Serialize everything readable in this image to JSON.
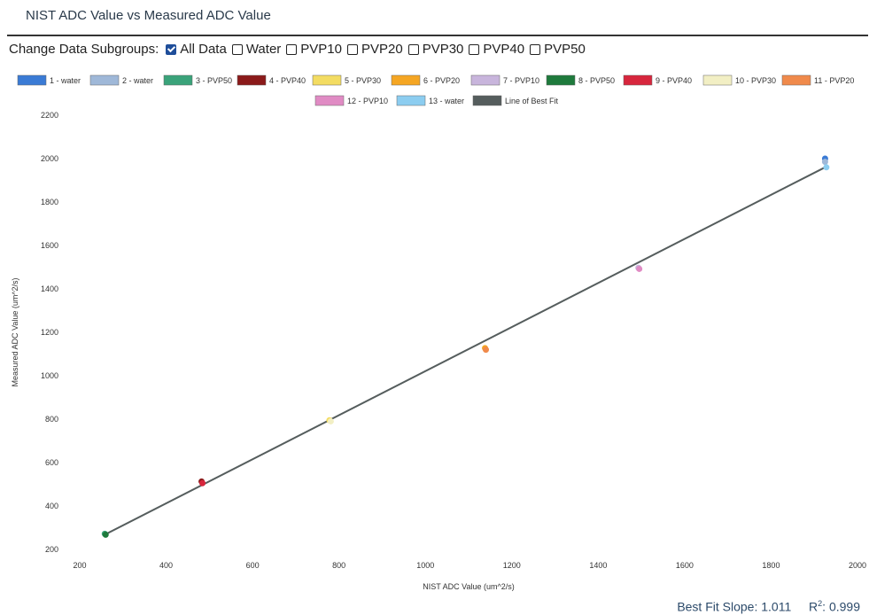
{
  "title": "NIST ADC Value vs Measured ADC Value",
  "subgroups": {
    "label": "Change Data Subgroups:",
    "options": [
      {
        "label": "All Data",
        "checked": true
      },
      {
        "label": "Water",
        "checked": false
      },
      {
        "label": "PVP10",
        "checked": false
      },
      {
        "label": "PVP20",
        "checked": false
      },
      {
        "label": "PVP30",
        "checked": false
      },
      {
        "label": "PVP40",
        "checked": false
      },
      {
        "label": "PVP50",
        "checked": false
      }
    ]
  },
  "footer": {
    "slope_label": "Best Fit Slope:",
    "slope_value": "1.011",
    "r2_label": "R",
    "r2_sup": "2",
    "r2_colon": ":",
    "r2_value": "0.999"
  },
  "chart_data": {
    "type": "scatter",
    "xlabel": "NIST ADC Value (um^2/s)",
    "ylabel": "Measured ADC Value (um^2/s)",
    "xlim": [
      200,
      2000
    ],
    "ylim": [
      200,
      2200
    ],
    "xticks": [
      200,
      400,
      600,
      800,
      1000,
      1200,
      1400,
      1600,
      1800,
      2000
    ],
    "yticks": [
      200,
      400,
      600,
      800,
      1000,
      1200,
      1400,
      1600,
      1800,
      2000,
      2200
    ],
    "grid": false,
    "legend_position": "top",
    "series": [
      {
        "name": "1 - water",
        "color": "#3a7bd5",
        "points": [
          [
            1925,
            2000
          ]
        ]
      },
      {
        "name": "2 - water",
        "color": "#9fb8d8",
        "points": [
          [
            1925,
            1985
          ]
        ]
      },
      {
        "name": "3 - PVP50",
        "color": "#3aa37a",
        "points": [
          [
            258,
            272
          ]
        ]
      },
      {
        "name": "4 - PVP40",
        "color": "#8b1a1a",
        "points": [
          [
            482,
            513
          ]
        ]
      },
      {
        "name": "5 - PVP30",
        "color": "#f3dc62",
        "points": [
          [
            778,
            795
          ]
        ]
      },
      {
        "name": "6 - PVP20",
        "color": "#f5a623",
        "points": [
          [
            1138,
            1127
          ]
        ]
      },
      {
        "name": "7 - PVP10",
        "color": "#c8b5dc",
        "points": [
          [
            1493,
            1497
          ]
        ]
      },
      {
        "name": "8 - PVP50",
        "color": "#1e7a3c",
        "points": [
          [
            260,
            268
          ]
        ]
      },
      {
        "name": "9 - PVP40",
        "color": "#d7263d",
        "points": [
          [
            484,
            505
          ]
        ]
      },
      {
        "name": "10 - PVP30",
        "color": "#f2efc4",
        "points": [
          [
            781,
            790
          ]
        ]
      },
      {
        "name": "11 - PVP20",
        "color": "#f08a4b",
        "points": [
          [
            1140,
            1120
          ]
        ]
      },
      {
        "name": "12 - PVP10",
        "color": "#e08bc4",
        "points": [
          [
            1495,
            1492
          ]
        ]
      },
      {
        "name": "13 - water",
        "color": "#8ccdf0",
        "points": [
          [
            1928,
            1960
          ]
        ]
      }
    ],
    "best_fit": {
      "name": "Line of Best Fit",
      "color": "#555d5d",
      "points": [
        [
          255,
          265
        ],
        [
          1925,
          1960
        ]
      ]
    }
  }
}
